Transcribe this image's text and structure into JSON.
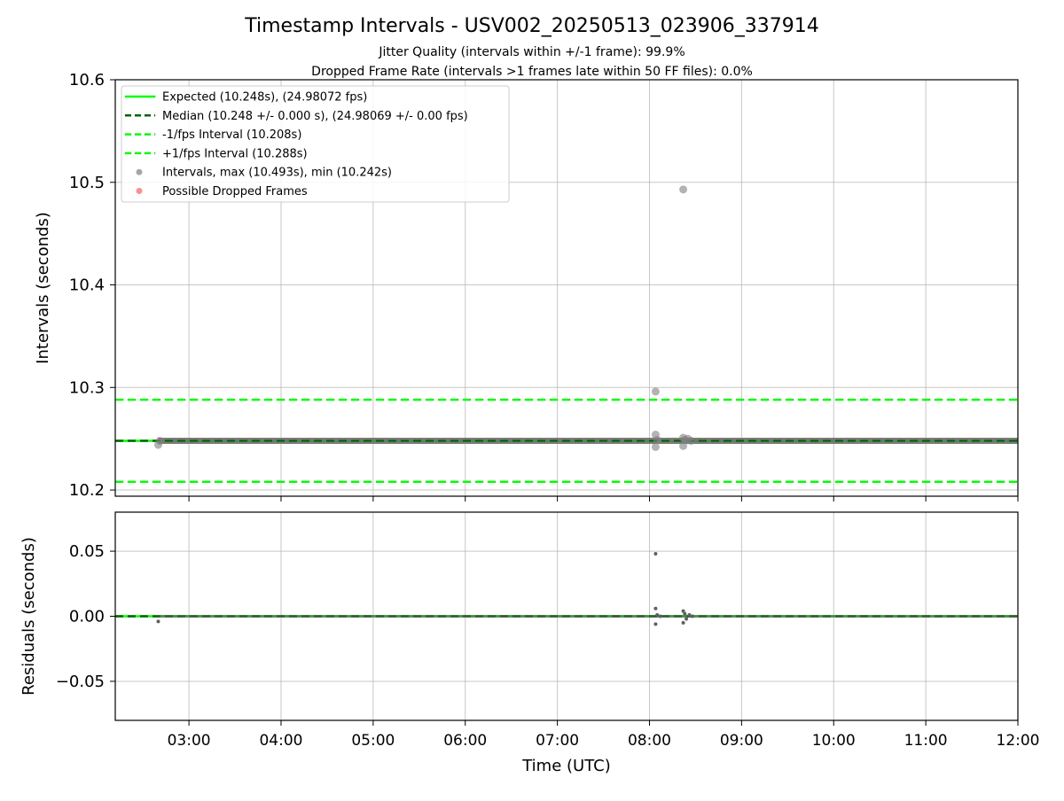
{
  "figure": {
    "title": "Timestamp Intervals - USV002_20250513_023906_337914",
    "subtitle_1": "Jitter Quality (intervals within +/-1 frame): 99.9%",
    "subtitle_2": "Dropped Frame Rate (intervals >1 frames late within 50 FF files): 0.0%"
  },
  "chart_data": [
    {
      "type": "scatter",
      "panel": "intervals",
      "ylabel": "Intervals (seconds)",
      "xlabel": "",
      "xlim": [
        "02:12",
        "12:00"
      ],
      "ylim": [
        10.194,
        10.6
      ],
      "yticks": [
        "10.2",
        "10.3",
        "10.4",
        "10.5",
        "10.6"
      ],
      "xticks": [
        "03:00",
        "04:00",
        "05:00",
        "06:00",
        "07:00",
        "08:00",
        "09:00",
        "10:00",
        "11:00",
        "12:00"
      ],
      "grid": true,
      "legend_position": "upper-left",
      "reference_lines": [
        {
          "name": "Expected (10.248s), (24.98072 fps)",
          "y": 10.248,
          "style": "solid",
          "color": "#00ff00"
        },
        {
          "name": "Median (10.248 +/- 0.000 s), (24.98069 +/- 0.00 fps)",
          "y": 10.248,
          "style": "dashed",
          "color": "#006400"
        },
        {
          "name": "-1/fps Interval (10.208s)",
          "y": 10.208,
          "style": "dashed",
          "color": "#00ff00"
        },
        {
          "name": "+1/fps Interval (10.288s)",
          "y": 10.288,
          "style": "dashed",
          "color": "#00ff00"
        }
      ],
      "series": [
        {
          "name": "Intervals, max (10.493s), min (10.242s)",
          "color": "#808080",
          "points": [
            {
              "x": "02:40",
              "y": 10.244
            },
            {
              "x": "02:41",
              "y": 10.248
            },
            {
              "x": "08:04",
              "y": 10.296
            },
            {
              "x": "08:04",
              "y": 10.254
            },
            {
              "x": "08:04",
              "y": 10.242
            },
            {
              "x": "08:05",
              "y": 10.249
            },
            {
              "x": "08:22",
              "y": 10.493
            },
            {
              "x": "08:22",
              "y": 10.251
            },
            {
              "x": "08:22",
              "y": 10.243
            },
            {
              "x": "08:23",
              "y": 10.249
            },
            {
              "x": "08:25",
              "y": 10.25
            },
            {
              "x": "08:27",
              "y": 10.248
            }
          ],
          "baseline_band": {
            "from": "02:40",
            "to": "12:00",
            "y": 10.248
          }
        },
        {
          "name": "Possible Dropped Frames",
          "color": "#ff6060",
          "points": []
        }
      ]
    },
    {
      "type": "scatter",
      "panel": "residuals",
      "ylabel": "Residuals (seconds)",
      "xlabel": "Time (UTC)",
      "xlim": [
        "02:12",
        "12:00"
      ],
      "ylim": [
        -0.08,
        0.08
      ],
      "yticks": [
        "0.05",
        "0.00",
        "−0.05"
      ],
      "xticks": [
        "03:00",
        "04:00",
        "05:00",
        "06:00",
        "07:00",
        "08:00",
        "09:00",
        "10:00",
        "11:00",
        "12:00"
      ],
      "grid": true,
      "reference_lines": [
        {
          "y": 0.0,
          "style": "solid",
          "color": "#00ff00"
        },
        {
          "y": 0.0,
          "style": "dashed",
          "color": "#006400"
        }
      ],
      "series": [
        {
          "color": "#606060",
          "points": [
            {
              "x": "02:40",
              "y": -0.004
            },
            {
              "x": "08:04",
              "y": 0.048
            },
            {
              "x": "08:04",
              "y": 0.006
            },
            {
              "x": "08:04",
              "y": -0.006
            },
            {
              "x": "08:05",
              "y": 0.001
            },
            {
              "x": "08:07",
              "y": 0.0
            },
            {
              "x": "08:22",
              "y": 0.004
            },
            {
              "x": "08:22",
              "y": -0.005
            },
            {
              "x": "08:23",
              "y": 0.002
            },
            {
              "x": "08:24",
              "y": -0.002
            },
            {
              "x": "08:26",
              "y": 0.001
            },
            {
              "x": "08:28",
              "y": 0.0
            }
          ]
        }
      ]
    }
  ]
}
